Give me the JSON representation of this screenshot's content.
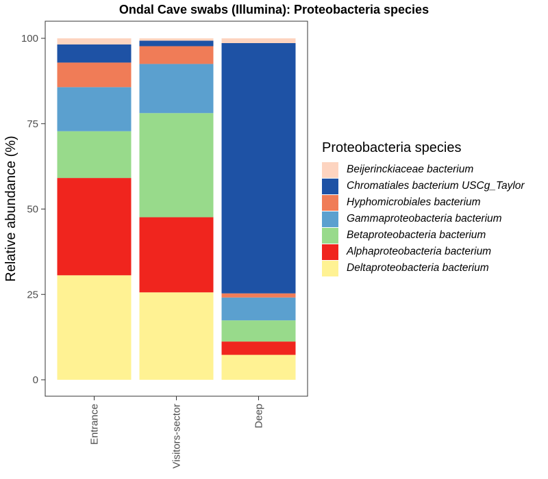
{
  "chart_data": {
    "type": "bar",
    "stacked": true,
    "title": "Ondal Cave swabs (Illumina): Proteobacteria species",
    "xlabel": "",
    "ylabel": "Relative abundance (%)",
    "ylim": [
      0,
      100
    ],
    "yticks": [
      0,
      25,
      50,
      75,
      100
    ],
    "categories": [
      "Entrance",
      "Visitors-sector",
      "Deep"
    ],
    "legend_title": "Proteobacteria species",
    "legend_position": "right",
    "grid": false,
    "series": [
      {
        "name": "Deltaproteobacteria bacterium",
        "color": "#FFF293",
        "values": [
          30.6,
          25.6,
          7.3
        ]
      },
      {
        "name": "Alphaproteobacteria bacterium",
        "color": "#F0251E",
        "values": [
          28.5,
          22.0,
          3.9
        ]
      },
      {
        "name": "Betaproteobacteria bacterium",
        "color": "#98DA8B",
        "values": [
          13.7,
          30.5,
          6.2
        ]
      },
      {
        "name": "Gammaproteobacteria bacterium",
        "color": "#5BA0CF",
        "values": [
          12.9,
          14.4,
          6.7
        ]
      },
      {
        "name": "Hyphomicrobiales bacterium",
        "color": "#F07C57",
        "values": [
          7.2,
          5.2,
          1.2
        ]
      },
      {
        "name": "Chromatiales bacterium USCg_Taylor",
        "color": "#1E52A5",
        "values": [
          5.3,
          1.6,
          73.3
        ]
      },
      {
        "name": "Beijerinckiaceae bacterium",
        "color": "#FDD4C0",
        "values": [
          1.8,
          0.7,
          1.4
        ]
      }
    ]
  }
}
